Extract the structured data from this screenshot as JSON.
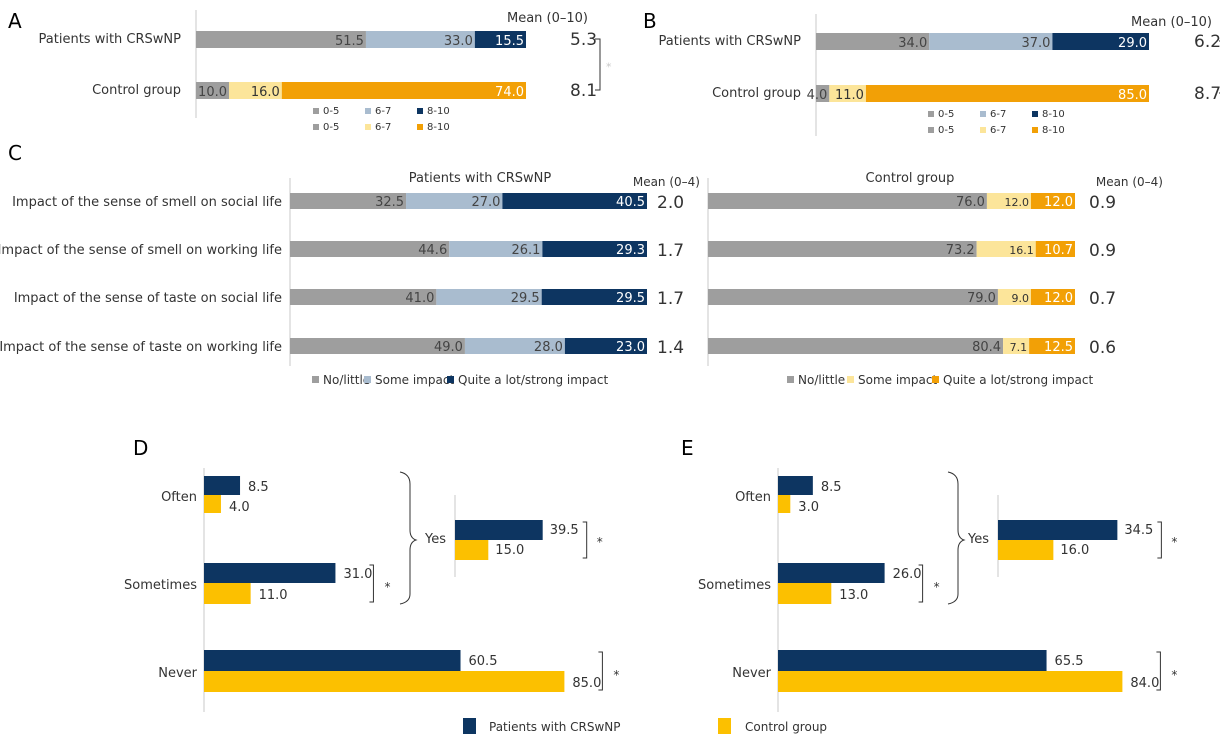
{
  "colors": {
    "gray": "#9e9e9e",
    "light_blue": "#a9bccf",
    "navy": "#0d3561",
    "pale_yellow": "#fce59a",
    "orange": "#f2a006",
    "yellow": "#fcc000",
    "axis": "#c8c8c8",
    "text": "#333333",
    "asterisk_faint": "#c8c8c8",
    "asterisk_dark": "#333333"
  },
  "chart_data": [
    {
      "panel": "A",
      "type": "bar",
      "stacked": true,
      "orientation": "horizontal",
      "categories": [
        "Patients with CRSwNP",
        "Control group"
      ],
      "series": [
        {
          "name": "0-5",
          "values": [
            51.5,
            10.0
          ]
        },
        {
          "name": "6-7",
          "values": [
            33.0,
            16.0
          ]
        },
        {
          "name": "8-10",
          "values": [
            15.5,
            74.0
          ]
        }
      ],
      "legend_rows": [
        [
          "0-5",
          "6-7",
          "8-10"
        ],
        [
          "0-5",
          "6-7",
          "8-10"
        ]
      ],
      "mean_header": "Mean (0–10)",
      "means": [
        "5.3",
        "8.1"
      ],
      "significance": "*",
      "xlim": [
        0,
        100
      ]
    },
    {
      "panel": "B",
      "type": "bar",
      "stacked": true,
      "orientation": "horizontal",
      "categories": [
        "Patients with CRSwNP",
        "Control group"
      ],
      "series": [
        {
          "name": "0-5",
          "values": [
            34.0,
            4.0
          ]
        },
        {
          "name": "6-7",
          "values": [
            37.0,
            11.0
          ]
        },
        {
          "name": "8-10",
          "values": [
            29.0,
            85.0
          ]
        }
      ],
      "legend_rows": [
        [
          "0-5",
          "6-7",
          "8-10"
        ],
        [
          "0-5",
          "6-7",
          "8-10"
        ]
      ],
      "mean_header": "Mean (0–10)",
      "means": [
        "6.2",
        "8.7"
      ],
      "significance": "*",
      "xlim": [
        0,
        100
      ]
    },
    {
      "panel": "C",
      "type": "bar",
      "stacked": true,
      "orientation": "horizontal",
      "categories": [
        "Impact of the sense of smell on social life",
        "Impact of the sense of smell on working life",
        "Impact of the sense of taste on social life",
        "Impact of the sense of taste on working life"
      ],
      "groups": [
        {
          "title": "Patients with CRSwNP",
          "series": [
            {
              "name": "No/little",
              "values": [
                32.5,
                44.6,
                41.0,
                49.0
              ]
            },
            {
              "name": "Some impact",
              "values": [
                27.0,
                26.1,
                29.5,
                28.0
              ]
            },
            {
              "name": "Quite a lot/strong impact",
              "values": [
                40.5,
                29.3,
                29.5,
                23.0
              ]
            }
          ],
          "mean_header": "Mean (0–4)",
          "means": [
            "2.0",
            "1.7",
            "1.7",
            "1.4"
          ]
        },
        {
          "title": "Control group",
          "series": [
            {
              "name": "No/little",
              "values": [
                76.0,
                73.2,
                79.0,
                80.4
              ]
            },
            {
              "name": "Some impact",
              "values": [
                12.0,
                16.1,
                9.0,
                7.1
              ]
            },
            {
              "name": "Quite a lot/strong impact",
              "values": [
                12.0,
                10.7,
                12.0,
                12.5
              ]
            }
          ],
          "mean_header": "Mean (0–4)",
          "means": [
            "0.9",
            "0.9",
            "0.7",
            "0.6"
          ]
        }
      ],
      "xlim": [
        0,
        100
      ]
    },
    {
      "panel": "D",
      "type": "bar",
      "orientation": "horizontal",
      "categories": [
        "Often",
        "Sometimes",
        "Never"
      ],
      "series": [
        {
          "name": "Patients with CRSwNP",
          "values": [
            8.5,
            31.0,
            60.5
          ]
        },
        {
          "name": "Control group",
          "values": [
            4.0,
            11.0,
            85.0
          ]
        }
      ],
      "inset": {
        "category": "Yes",
        "values": [
          39.5,
          15.0
        ]
      },
      "significance": "*"
    },
    {
      "panel": "E",
      "type": "bar",
      "orientation": "horizontal",
      "categories": [
        "Often",
        "Sometimes",
        "Never"
      ],
      "series": [
        {
          "name": "Patients with CRSwNP",
          "values": [
            8.5,
            26.0,
            65.5
          ]
        },
        {
          "name": "Control group",
          "values": [
            3.0,
            13.0,
            84.0
          ]
        }
      ],
      "inset": {
        "category": "Yes",
        "values": [
          34.5,
          16.0
        ]
      },
      "significance": "*"
    }
  ],
  "legend": {
    "patients": "Patients with CRSwNP",
    "control": "Control group"
  }
}
